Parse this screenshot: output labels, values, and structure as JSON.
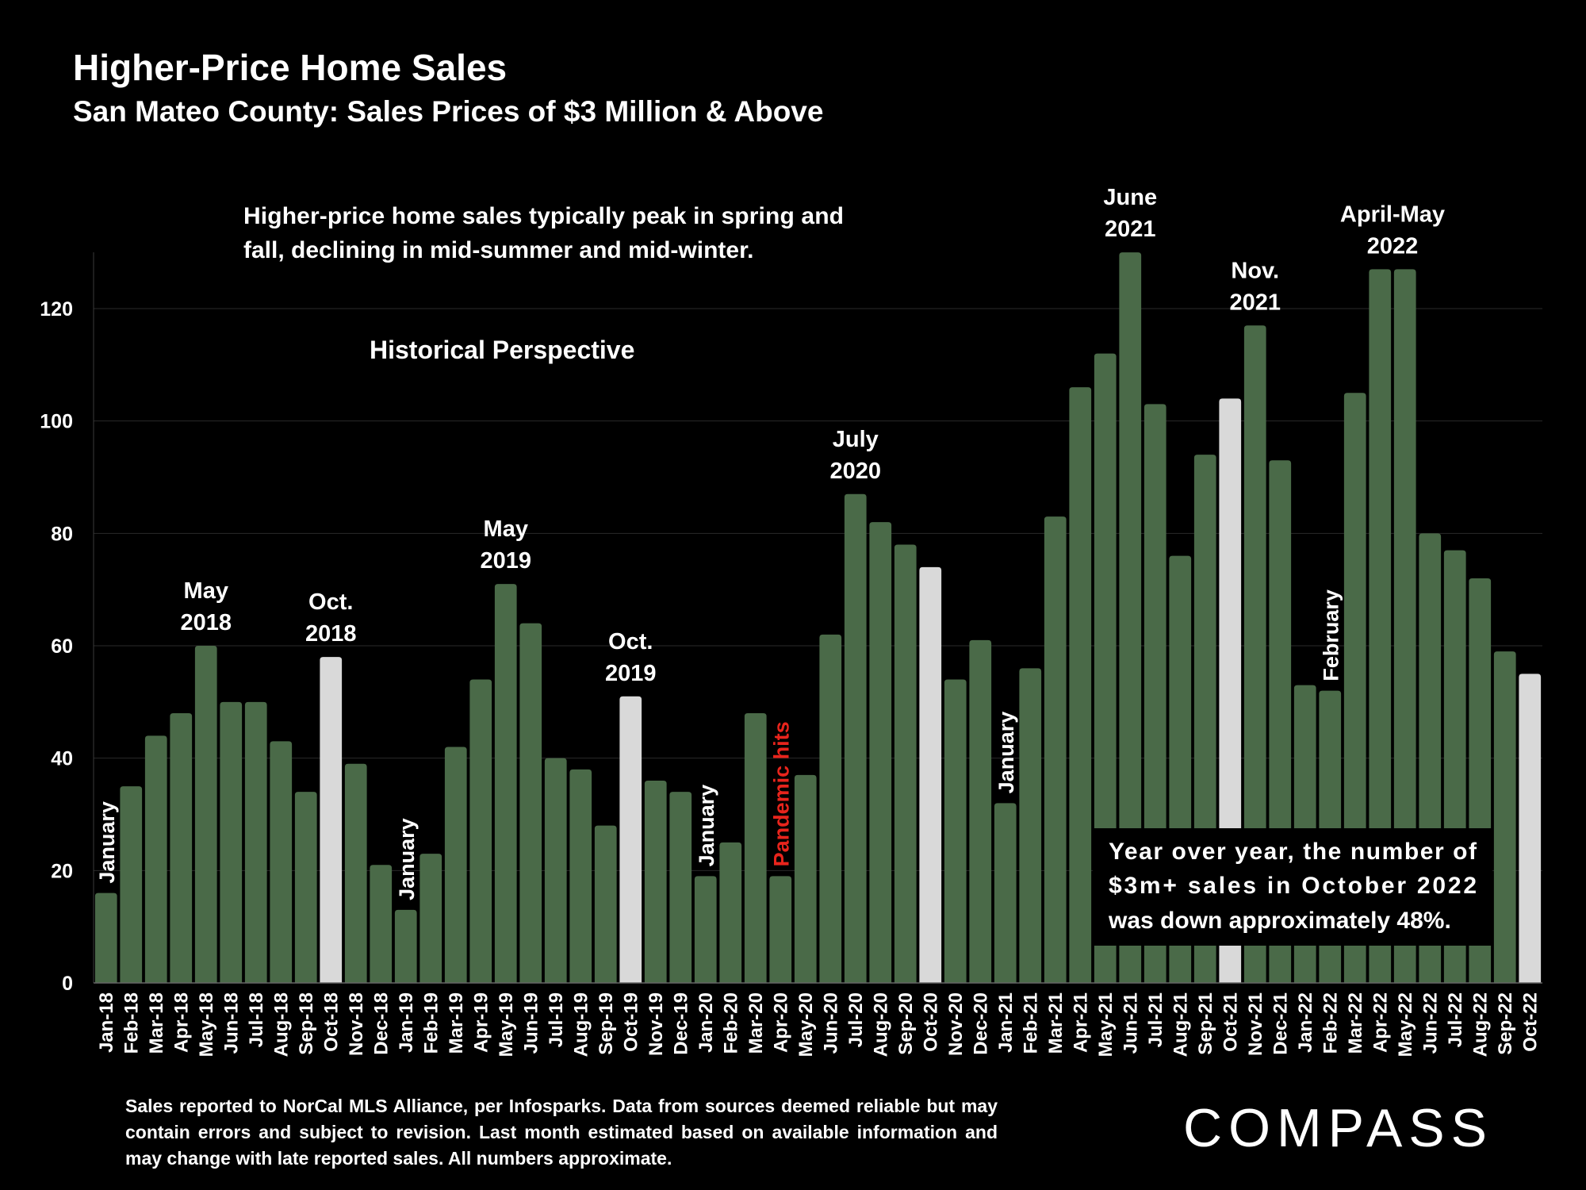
{
  "header": {
    "title": "Higher-Price Home Sales",
    "subtitle": "San Mateo County: Sales Prices of $3 Million & Above"
  },
  "footnote": "Sales reported to NorCal MLS Alliance, per Infosparks. Data from sources deemed reliable but may contain errors and subject to revision. Last month estimated based on available information and may change with late reported sales. All numbers approximate.",
  "logo": "COMPASS",
  "colors": {
    "bar": "#4a6a48",
    "highlight": "#d9d9d9",
    "grid": "#2a2a2a",
    "pandemic_text": "#e8241c"
  },
  "chart_data": {
    "type": "bar",
    "title": "Higher-Price Home Sales",
    "subtitle": "San Mateo County: Sales Prices of $3 Million & Above",
    "xlabel": "",
    "ylabel": "",
    "ylim": [
      0,
      130
    ],
    "yticks": [
      0,
      20,
      40,
      60,
      80,
      100,
      120
    ],
    "grid": true,
    "categories": [
      "Jan-18",
      "Feb-18",
      "Mar-18",
      "Apr-18",
      "May-18",
      "Jun-18",
      "Jul-18",
      "Aug-18",
      "Sep-18",
      "Oct-18",
      "Nov-18",
      "Dec-18",
      "Jan-19",
      "Feb-19",
      "Mar-19",
      "Apr-19",
      "May-19",
      "Jun-19",
      "Jul-19",
      "Aug-19",
      "Sep-19",
      "Oct-19",
      "Nov-19",
      "Dec-19",
      "Jan-20",
      "Feb-20",
      "Mar-20",
      "Apr-20",
      "May-20",
      "Jun-20",
      "Jul-20",
      "Aug-20",
      "Sep-20",
      "Oct-20",
      "Nov-20",
      "Dec-20",
      "Jan-21",
      "Feb-21",
      "Mar-21",
      "Apr-21",
      "May-21",
      "Jun-21",
      "Jul-21",
      "Aug-21",
      "Sep-21",
      "Oct-21",
      "Nov-21",
      "Dec-21",
      "Jan-22",
      "Feb-22",
      "Mar-22",
      "Apr-22",
      "May-22",
      "Jun-22",
      "Jul-22",
      "Aug-22",
      "Sep-22",
      "Oct-22"
    ],
    "values": [
      16,
      35,
      44,
      48,
      60,
      50,
      50,
      43,
      34,
      58,
      39,
      21,
      13,
      23,
      42,
      54,
      71,
      64,
      40,
      38,
      28,
      51,
      36,
      34,
      19,
      25,
      48,
      19,
      37,
      62,
      87,
      82,
      78,
      74,
      54,
      61,
      32,
      56,
      83,
      106,
      112,
      130,
      103,
      76,
      94,
      104,
      117,
      93,
      53,
      52,
      105,
      127,
      127,
      80,
      77,
      72,
      59,
      55
    ],
    "highlighted": [
      "Oct-18",
      "Oct-19",
      "Oct-20",
      "Oct-21",
      "Oct-22"
    ],
    "annotations": [
      {
        "text": "May\n2018",
        "at": "May-18",
        "style": "horizontal"
      },
      {
        "text": "Oct.\n2018",
        "at": "Oct-18",
        "style": "horizontal"
      },
      {
        "text": "May\n2019",
        "at": "May-19",
        "style": "horizontal"
      },
      {
        "text": "Oct.\n2019",
        "at": "Oct-19",
        "style": "horizontal"
      },
      {
        "text": "July\n2020",
        "at": "Jul-20",
        "style": "horizontal"
      },
      {
        "text": "June\n2021",
        "at": "Jun-21",
        "style": "horizontal"
      },
      {
        "text": "Nov.\n2021",
        "at": "Nov-21",
        "style": "horizontal"
      },
      {
        "text": "April-May\n2022",
        "at": "Apr-22",
        "style": "horizontal"
      },
      {
        "text": "January",
        "at": "Jan-18",
        "style": "vertical"
      },
      {
        "text": "January",
        "at": "Jan-19",
        "style": "vertical"
      },
      {
        "text": "January",
        "at": "Jan-20",
        "style": "vertical"
      },
      {
        "text": "Pandemic hits",
        "at": "Apr-20",
        "style": "vertical-red"
      },
      {
        "text": "January",
        "at": "Jan-21",
        "style": "vertical"
      },
      {
        "text": "February",
        "at": "Feb-22",
        "style": "vertical"
      }
    ],
    "notes": [
      "Higher-price home sales typically peak in spring and fall, declining in mid-summer and mid-winter.",
      "Historical Perspective",
      "Year over year, the number of $3m+ sales in October 2022 was down approximately 48%."
    ]
  }
}
